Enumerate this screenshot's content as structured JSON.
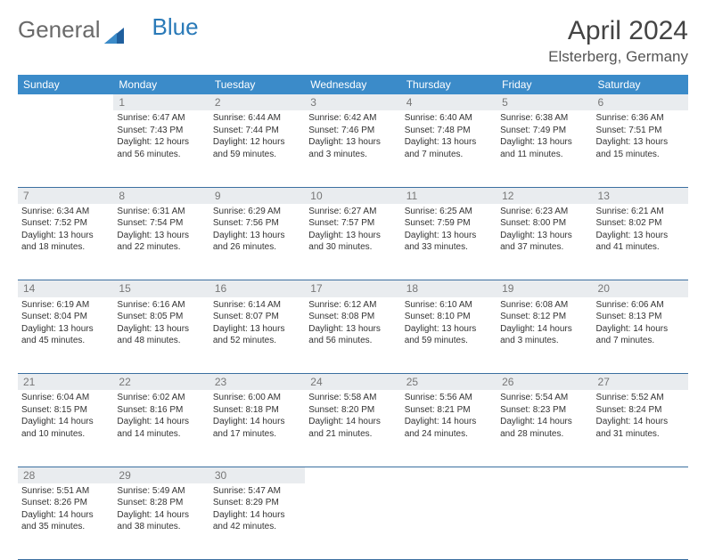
{
  "logo": {
    "text1": "General",
    "text2": "Blue",
    "color1": "#6a6a6a",
    "color2": "#2a7ab8",
    "icon_color": "#1f5f9e"
  },
  "title": "April 2024",
  "location": "Elsterberg, Germany",
  "colors": {
    "header_bg": "#3b8bc9",
    "header_text": "#ffffff",
    "daynum_bg": "#e9ecef",
    "daynum_text": "#777777",
    "row_border": "#3b6fa0",
    "body_text": "#333333"
  },
  "weekdays": [
    "Sunday",
    "Monday",
    "Tuesday",
    "Wednesday",
    "Thursday",
    "Friday",
    "Saturday"
  ],
  "weeks": [
    {
      "nums": [
        "",
        "1",
        "2",
        "3",
        "4",
        "5",
        "6"
      ],
      "cells": [
        null,
        {
          "sunrise": "6:47 AM",
          "sunset": "7:43 PM",
          "daylight": "12 hours and 56 minutes."
        },
        {
          "sunrise": "6:44 AM",
          "sunset": "7:44 PM",
          "daylight": "12 hours and 59 minutes."
        },
        {
          "sunrise": "6:42 AM",
          "sunset": "7:46 PM",
          "daylight": "13 hours and 3 minutes."
        },
        {
          "sunrise": "6:40 AM",
          "sunset": "7:48 PM",
          "daylight": "13 hours and 7 minutes."
        },
        {
          "sunrise": "6:38 AM",
          "sunset": "7:49 PM",
          "daylight": "13 hours and 11 minutes."
        },
        {
          "sunrise": "6:36 AM",
          "sunset": "7:51 PM",
          "daylight": "13 hours and 15 minutes."
        }
      ]
    },
    {
      "nums": [
        "7",
        "8",
        "9",
        "10",
        "11",
        "12",
        "13"
      ],
      "cells": [
        {
          "sunrise": "6:34 AM",
          "sunset": "7:52 PM",
          "daylight": "13 hours and 18 minutes."
        },
        {
          "sunrise": "6:31 AM",
          "sunset": "7:54 PM",
          "daylight": "13 hours and 22 minutes."
        },
        {
          "sunrise": "6:29 AM",
          "sunset": "7:56 PM",
          "daylight": "13 hours and 26 minutes."
        },
        {
          "sunrise": "6:27 AM",
          "sunset": "7:57 PM",
          "daylight": "13 hours and 30 minutes."
        },
        {
          "sunrise": "6:25 AM",
          "sunset": "7:59 PM",
          "daylight": "13 hours and 33 minutes."
        },
        {
          "sunrise": "6:23 AM",
          "sunset": "8:00 PM",
          "daylight": "13 hours and 37 minutes."
        },
        {
          "sunrise": "6:21 AM",
          "sunset": "8:02 PM",
          "daylight": "13 hours and 41 minutes."
        }
      ]
    },
    {
      "nums": [
        "14",
        "15",
        "16",
        "17",
        "18",
        "19",
        "20"
      ],
      "cells": [
        {
          "sunrise": "6:19 AM",
          "sunset": "8:04 PM",
          "daylight": "13 hours and 45 minutes."
        },
        {
          "sunrise": "6:16 AM",
          "sunset": "8:05 PM",
          "daylight": "13 hours and 48 minutes."
        },
        {
          "sunrise": "6:14 AM",
          "sunset": "8:07 PM",
          "daylight": "13 hours and 52 minutes."
        },
        {
          "sunrise": "6:12 AM",
          "sunset": "8:08 PM",
          "daylight": "13 hours and 56 minutes."
        },
        {
          "sunrise": "6:10 AM",
          "sunset": "8:10 PM",
          "daylight": "13 hours and 59 minutes."
        },
        {
          "sunrise": "6:08 AM",
          "sunset": "8:12 PM",
          "daylight": "14 hours and 3 minutes."
        },
        {
          "sunrise": "6:06 AM",
          "sunset": "8:13 PM",
          "daylight": "14 hours and 7 minutes."
        }
      ]
    },
    {
      "nums": [
        "21",
        "22",
        "23",
        "24",
        "25",
        "26",
        "27"
      ],
      "cells": [
        {
          "sunrise": "6:04 AM",
          "sunset": "8:15 PM",
          "daylight": "14 hours and 10 minutes."
        },
        {
          "sunrise": "6:02 AM",
          "sunset": "8:16 PM",
          "daylight": "14 hours and 14 minutes."
        },
        {
          "sunrise": "6:00 AM",
          "sunset": "8:18 PM",
          "daylight": "14 hours and 17 minutes."
        },
        {
          "sunrise": "5:58 AM",
          "sunset": "8:20 PM",
          "daylight": "14 hours and 21 minutes."
        },
        {
          "sunrise": "5:56 AM",
          "sunset": "8:21 PM",
          "daylight": "14 hours and 24 minutes."
        },
        {
          "sunrise": "5:54 AM",
          "sunset": "8:23 PM",
          "daylight": "14 hours and 28 minutes."
        },
        {
          "sunrise": "5:52 AM",
          "sunset": "8:24 PM",
          "daylight": "14 hours and 31 minutes."
        }
      ]
    },
    {
      "nums": [
        "28",
        "29",
        "30",
        "",
        "",
        "",
        ""
      ],
      "cells": [
        {
          "sunrise": "5:51 AM",
          "sunset": "8:26 PM",
          "daylight": "14 hours and 35 minutes."
        },
        {
          "sunrise": "5:49 AM",
          "sunset": "8:28 PM",
          "daylight": "14 hours and 38 minutes."
        },
        {
          "sunrise": "5:47 AM",
          "sunset": "8:29 PM",
          "daylight": "14 hours and 42 minutes."
        },
        null,
        null,
        null,
        null
      ]
    }
  ],
  "labels": {
    "sunrise": "Sunrise:",
    "sunset": "Sunset:",
    "daylight": "Daylight:"
  }
}
